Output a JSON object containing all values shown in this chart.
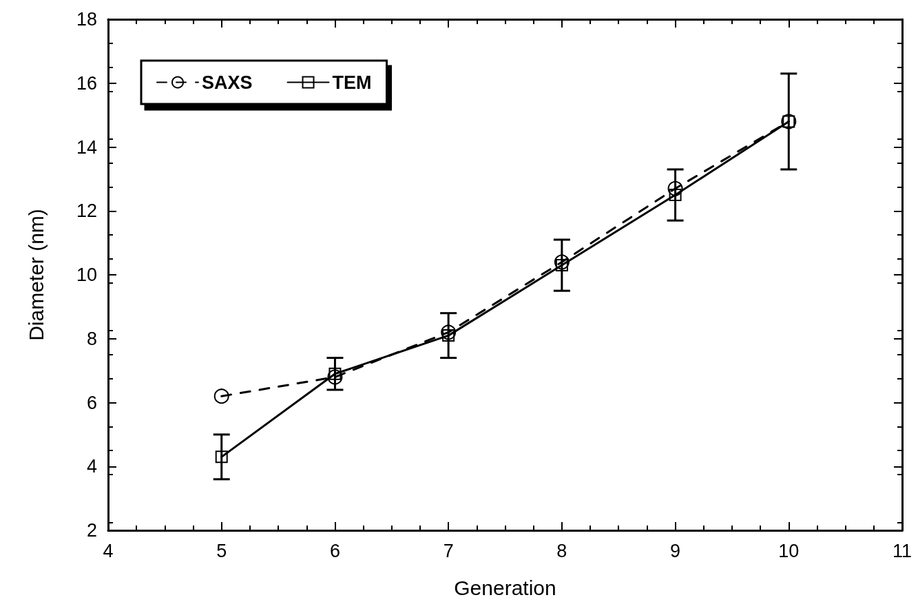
{
  "chart_data": {
    "type": "line",
    "xlabel": "Generation",
    "ylabel": "Diameter (nm)",
    "x": [
      5,
      6,
      7,
      8,
      9,
      10
    ],
    "series": [
      {
        "name": "SAXS",
        "color": "#000000",
        "values": [
          6.2,
          6.8,
          8.2,
          10.4,
          12.7,
          14.8
        ],
        "marker": "circle",
        "line_style": "dashed"
      },
      {
        "name": "TEM",
        "color": "#000000",
        "values": [
          4.3,
          6.9,
          8.1,
          10.3,
          12.5,
          14.8
        ],
        "errors": [
          0.7,
          0.5,
          0.7,
          0.8,
          0.8,
          1.5
        ],
        "marker": "square",
        "line_style": "solid"
      }
    ],
    "xlim": [
      4,
      11
    ],
    "xticks": [
      4,
      5,
      6,
      7,
      8,
      9,
      10,
      11
    ],
    "ylim": [
      2,
      18
    ],
    "yticks": [
      2,
      4,
      6,
      8,
      10,
      12,
      14,
      16,
      18
    ],
    "grid": false,
    "legend": "top left"
  }
}
